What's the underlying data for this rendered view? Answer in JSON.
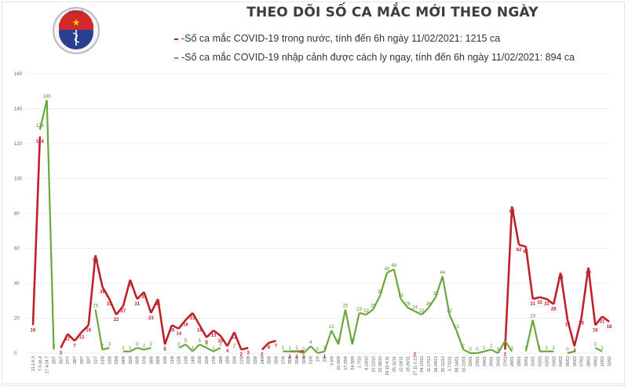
{
  "header": {
    "title": "THEO DÕI SỐ CA MẮC MỚI THEO NGÀY",
    "logo_text": "BỘ Y TẾ"
  },
  "legend": [
    {
      "marker": "-",
      "label": "-Số ca mắc COVID-19 trong nước, tính đến 6h ngày 11/02/2021: 1215 ca",
      "color": "#c0202a"
    },
    {
      "marker": "-",
      "label": "-Số ca mắc COVID-19 nhập cảnh được cách ly ngay, tính đến 6h ngày 11/02/2021: 894 ca",
      "color": "#6aa83a"
    }
  ],
  "colors": {
    "domestic": "#c0202a",
    "imported": "#6aa83a",
    "grid": "#e8e8e8"
  },
  "chart_data": {
    "type": "line",
    "title": "THEO DÕI SỐ CA MẮC MỚI THEO NGÀY",
    "xlabel": "",
    "ylabel": "",
    "ylim": [
      0,
      160
    ],
    "yticks": [
      0,
      20,
      40,
      60,
      80,
      100,
      120,
      140,
      160
    ],
    "grid": true,
    "legend_position": "top",
    "categories": [
      "21.1-6.3",
      "7.3-16.4",
      "17.4-24.7",
      "25/7",
      "26/7",
      "27/7",
      "28/7",
      "29/7",
      "30/7",
      "31/7",
      "01/8",
      "02/8",
      "03/8",
      "04/8",
      "05/8",
      "06/8",
      "07/8",
      "08/8",
      "09/8",
      "10/8",
      "11/8",
      "12/8",
      "13/8",
      "14/8",
      "15/8",
      "16/8",
      "17/8",
      "18/8",
      "19/8",
      "20/8",
      "21/8",
      "22/8",
      "23/8",
      "24/8",
      "25/8",
      "26/8",
      "27/8",
      "28/8",
      "29/8",
      "30/8",
      "31/8",
      "1/9",
      "2/9",
      "3-9/9",
      "10-16/9",
      "17-23/9",
      "24-30/9",
      "1-7/10",
      "8-14/10",
      "15-21/10",
      "22-28/10",
      "29.10-4.11",
      "05-11/11",
      "12-18/11",
      "19-26/11",
      "27.11-3.12",
      "04-10/12",
      "11-17/12",
      "18-24/12",
      "25-31/12",
      "1-7/1/21",
      "08-14/01",
      "15-21/01",
      "22/01",
      "23/01",
      "24/01",
      "25/01",
      "26/01",
      "27/01",
      "28/01",
      "29/01",
      "30/01",
      "31/01",
      "01/02",
      "02/02",
      "03/02",
      "04/02",
      "05/02",
      "06/02",
      "07/02",
      "08/02",
      "09/02",
      "10/02",
      "11/02"
    ],
    "series": [
      {
        "name": "Số ca mắc COVID-19 trong nước",
        "color": "#c0202a",
        "values": [
          16,
          124,
          null,
          null,
          3,
          11,
          7,
          12,
          16,
          56,
          38,
          31,
          22,
          27,
          42,
          31,
          35,
          23,
          31,
          5,
          16,
          14,
          19,
          23,
          16,
          9,
          13,
          10,
          4,
          12,
          2,
          3,
          null,
          2,
          6,
          7,
          null,
          1,
          1,
          1,
          null,
          null,
          1,
          null,
          null,
          null,
          null,
          null,
          null,
          null,
          null,
          null,
          null,
          null,
          null,
          2,
          null,
          null,
          null,
          null,
          null,
          null,
          null,
          null,
          null,
          null,
          null,
          null,
          2,
          84,
          62,
          61,
          31,
          32,
          31,
          28,
          46,
          19,
          4,
          20,
          49,
          16,
          21,
          18
        ]
      },
      {
        "name": "Số ca mắc COVID-19 nhập cảnh được cách ly ngay",
        "color": "#6aa83a",
        "values": [
          null,
          128,
          145,
          2,
          null,
          null,
          null,
          null,
          null,
          25,
          2,
          3,
          null,
          1,
          1,
          3,
          2,
          3,
          null,
          1,
          null,
          3,
          5,
          1,
          5,
          3,
          1,
          3,
          null,
          2,
          null,
          null,
          null,
          null,
          null,
          null,
          1,
          1,
          1,
          0,
          4,
          0,
          1,
          13,
          5,
          25,
          5,
          23,
          22,
          25,
          33,
          46,
          48,
          31,
          26,
          24,
          22,
          26,
          32,
          44,
          22,
          13,
          2,
          0,
          0,
          1,
          2,
          0,
          7,
          1,
          null,
          1,
          19,
          1,
          1,
          1,
          null,
          0,
          1,
          null,
          null,
          3,
          1,
          null
        ]
      }
    ]
  }
}
